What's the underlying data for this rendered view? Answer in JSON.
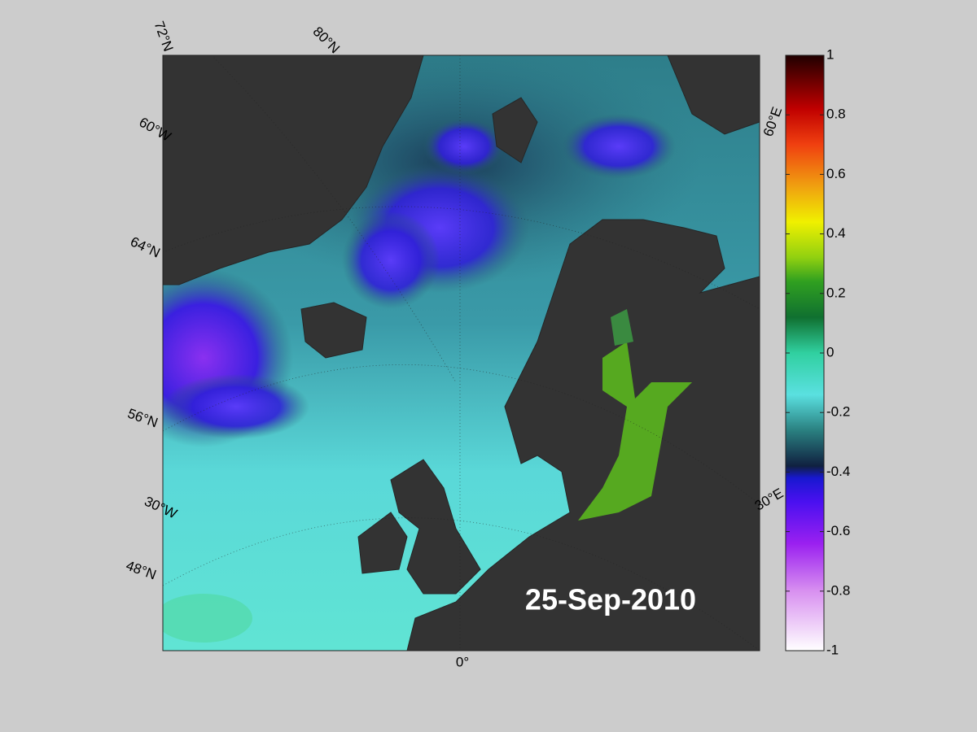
{
  "map": {
    "date": "25-Sep-2010",
    "graticule_labels": [
      "72°N",
      "80°N",
      "60°W",
      "64°N",
      "56°N",
      "30°W",
      "48°N",
      "0°",
      "60°E",
      "30°E"
    ],
    "colorbar": {
      "lim": [
        -1,
        1
      ],
      "ticks": [
        -1,
        -0.8,
        -0.6,
        -0.4,
        -0.2,
        0,
        0.2,
        0.4,
        0.6,
        0.8,
        1
      ]
    }
  }
}
